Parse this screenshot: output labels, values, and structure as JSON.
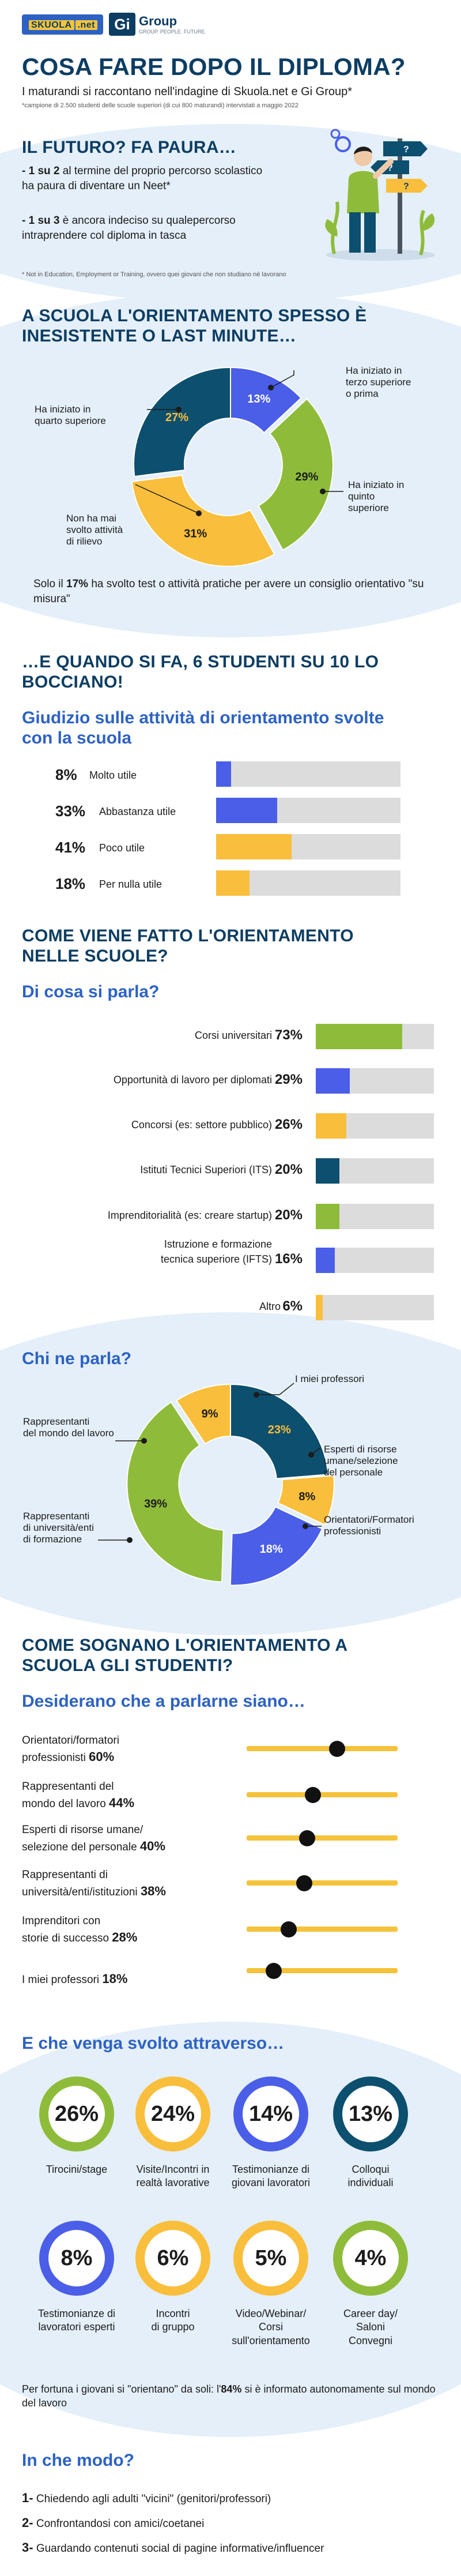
{
  "logos": {
    "skuola_main": "SKUOLA",
    "skuola_tag": ".net",
    "gi_mark": "Gi",
    "gi_text": "Group",
    "gi_tagline": "GROUP. PEOPLE. FUTURE."
  },
  "header": {
    "title": "COSA FARE DOPO IL DIPLOMA?",
    "subtitle": "I maturandi si raccontano nell'indagine di Skuola.net e Gi Group*",
    "sample_note": "*campione di 2.500 studenti delle scuole superiori (di cui 800 maturandi) intervistati a maggio 2022"
  },
  "future": {
    "title": "IL FUTURO? FA PAURA…",
    "point1_a": "- ",
    "point1_b": "1 su 2",
    "point1_c": " al termine del proprio percorso scolastico ha paura di diventare un Neet*",
    "point2_a": "- ",
    "point2_b": "1 su 3",
    "point2_c": " è ancora indeciso su qualepercorso intraprendere col diploma in tasca",
    "neet_note": "* Not in Education, Employment or Training, ovvero quei giovani che non studiano né lavorano",
    "sign_labels": [
      "?",
      "?",
      "?"
    ]
  },
  "start_section": {
    "title_line1": "A SCUOLA L'ORIENTAMENTO SPESSO È",
    "title_line2": "INESISTENTE O LAST MINUTE…",
    "footnote_a": "Solo il ",
    "footnote_b": "17%",
    "footnote_c": " ha svolto test o attività pratiche per avere un consiglio orientativo \"su misura\""
  },
  "chart_data": [
    {
      "type": "pie",
      "id": "inizio_orientamento",
      "categories": [
        "Ha iniziato in terzo superiore o prima",
        "Ha iniziato in quinto superiore",
        "Non ha mai svolto attività di rilievo",
        "Ha iniziato in quarto superiore"
      ],
      "values": [
        13,
        29,
        31,
        27
      ],
      "labels": [
        "13%",
        "29%",
        "31%",
        "27%"
      ],
      "colors": [
        "#4a5ee8",
        "#8ebc3a",
        "#f9be3b",
        "#0d4f6e"
      ]
    },
    {
      "type": "bar",
      "id": "giudizio_attivita",
      "title": "Giudizio sulle attività di orientamento svolte con la scuola",
      "categories": [
        "Molto utile",
        "Abbastanza utile",
        "Poco utile",
        "Per nulla utile"
      ],
      "values": [
        8,
        33,
        41,
        18
      ],
      "colors": [
        "#4a5ee8",
        "#4a5ee8",
        "#f9be3b",
        "#f9be3b"
      ],
      "xlim": [
        0,
        100
      ]
    },
    {
      "type": "bar",
      "id": "di_cosa_si_parla",
      "title": "Di cosa si parla?",
      "categories": [
        "Corsi universitari",
        "Opportunità di lavoro per diplomati",
        "Concorsi (es: settore pubblico)",
        "Istituti Tecnici Superiori (ITS)",
        "Imprenditorialità (es: creare startup)",
        "Istruzione e formazione tecnica superiore (IFTS)",
        "Altro"
      ],
      "values": [
        73,
        29,
        26,
        20,
        20,
        16,
        6
      ],
      "colors": [
        "#8ebc3a",
        "#4a5ee8",
        "#f9be3b",
        "#0d4f6e",
        "#8ebc3a",
        "#4a5ee8",
        "#f9be3b"
      ],
      "xlim": [
        0,
        100
      ]
    },
    {
      "type": "pie",
      "id": "chi_ne_parla",
      "title": "Chi ne parla?",
      "categories": [
        "I miei professori",
        "Esperti di risorse umane/selezione del personale",
        "Orientatori/Formatori professionisti",
        "Rappresentanti di università/enti di formazione",
        "Rappresentanti del mondo del lavoro"
      ],
      "values": [
        23,
        8,
        18,
        39,
        9
      ],
      "labels": [
        "23%",
        "8%",
        "18%",
        "39%",
        "9%"
      ],
      "colors": [
        "#0d4f6e",
        "#f9be3b",
        "#4a5ee8",
        "#8ebc3a",
        "#f9be3b"
      ]
    },
    {
      "type": "bar",
      "id": "desiderano_parlarne",
      "title": "Desiderano che a parlarne siano…",
      "categories": [
        "Orientatori/formatori professionisti",
        "Rappresentanti del mondo del lavoro",
        "Esperti di risorse umane/ selezione del personale",
        "Rappresentanti di università/enti/istituzioni",
        "Imprenditori con storie di successo",
        "I miei professori"
      ],
      "values": [
        60,
        44,
        40,
        38,
        28,
        18
      ],
      "xlim": [
        0,
        100
      ]
    },
    {
      "type": "bar",
      "id": "svolto_attraverso",
      "title": "E che venga svolto attraverso…",
      "categories": [
        "Tirocini/stage",
        "Visite/Incontri in realtà lavorative",
        "Testimonianze di giovani lavoratori",
        "Colloqui individuali",
        "Testimonianze di lavoratori esperti",
        "Incontri di gruppo",
        "Video/Webinar/ Corsi sull'orientamento",
        "Career day/ Saloni Convegni"
      ],
      "values": [
        26,
        24,
        14,
        13,
        8,
        6,
        5,
        4
      ],
      "colors": [
        "#8ebc3a",
        "#f9be3b",
        "#4a5ee8",
        "#0d4f6e",
        "#4a5ee8",
        "#f9be3b",
        "#f9be3b",
        "#8ebc3a"
      ]
    }
  ],
  "pie1_labels": {
    "terzo": "Ha iniziato in\nterzo superiore\no prima",
    "quinto": "Ha iniziato in\nquinto\nsuperiore",
    "mai": "Non ha mai\nsvolto attività\ndi rilievo",
    "quarto": "Ha iniziato in\nquarto superiore"
  },
  "bocciano": {
    "title_line1": "…E QUANDO SI FA, 6 STUDENTI SU 10 LO",
    "title_line2": "BOCCIANO!",
    "sub_line1": "Giudizio sulle attività di orientamento svolte",
    "sub_line2": "con la scuola",
    "rows": [
      {
        "pct": "8%",
        "label": "Molto utile"
      },
      {
        "pct": "33%",
        "label": "Abbastanza utile"
      },
      {
        "pct": "41%",
        "label": "Poco utile"
      },
      {
        "pct": "18%",
        "label": "Per nulla utile"
      }
    ]
  },
  "come_fatto": {
    "title_line1": "COME VIENE FATTO L'ORIENTAMENTO",
    "title_line2": "NELLE SCUOLE?",
    "sub": "Di cosa si parla?",
    "rows": [
      {
        "label": "Corsi universitari",
        "pct": "73%"
      },
      {
        "label": "Opportunità di lavoro per diplomati",
        "pct": "29%"
      },
      {
        "label": "Concorsi (es: settore pubblico)",
        "pct": "26%"
      },
      {
        "label": "Istituti Tecnici Superiori (ITS)",
        "pct": "20%"
      },
      {
        "label": "Imprenditorialità (es: creare startup)",
        "pct": "20%"
      },
      {
        "label_line1": "Istruzione e formazione",
        "label_line2": "tecnica superiore (IFTS)",
        "pct": "16%"
      },
      {
        "label": "Altro",
        "pct": "6%"
      }
    ]
  },
  "chi": {
    "sub": "Chi ne parla?",
    "professori": "I miei professori",
    "esperti": "Esperti di risorse\numane/selezione\ndel personale",
    "orientatori": "Orientatori/Formatori\nprofessionisti",
    "universita": "Rappresentanti\ndi università/enti\ndi formazione",
    "mondo": "Rappresentanti\ndel mondo del lavoro"
  },
  "sognano": {
    "title_line1": "COME SOGNANO L'ORIENTAMENTO A",
    "title_line2": "SCUOLA GLI STUDENTI?",
    "sub": "Desiderano che a parlarne siano…",
    "rows": [
      {
        "l1": "Orientatori/formatori",
        "l2": "professionisti ",
        "pct": "60%"
      },
      {
        "l1": "Rappresentanti del",
        "l2": "mondo del lavoro ",
        "pct": "44%"
      },
      {
        "l1": "Esperti di risorse umane/",
        "l2": "selezione del personale ",
        "pct": "40%"
      },
      {
        "l1": "Rappresentanti di",
        "l2": "università/enti/istituzioni ",
        "pct": "38%"
      },
      {
        "l1": "Imprenditori con",
        "l2": "storie di successo ",
        "pct": "28%"
      },
      {
        "l1": "",
        "l2": "I miei professori ",
        "pct": "18%"
      }
    ]
  },
  "attraverso": {
    "sub": "E che venga svolto attraverso…",
    "items": [
      {
        "pct": "26%",
        "label": "Tirocini/stage"
      },
      {
        "pct": "24%",
        "label": "Visite/Incontri in\nrealtà lavorative"
      },
      {
        "pct": "14%",
        "label": "Testimonianze di\ngiovani lavoratori"
      },
      {
        "pct": "13%",
        "label": "Colloqui\nindividuali"
      },
      {
        "pct": "8%",
        "label": "Testimonianze di\nlavoratori esperti"
      },
      {
        "pct": "6%",
        "label": "Incontri\ndi gruppo"
      },
      {
        "pct": "5%",
        "label": "Video/Webinar/\nCorsi\nsull'orientamento"
      },
      {
        "pct": "4%",
        "label": "Career day/\nSaloni\nConvegni"
      }
    ],
    "note_a": "Per fortuna i giovani si \"orientano\" da soli: l'",
    "note_b": "84%",
    "note_c": " si è informato autonomamente sul mondo del lavoro"
  },
  "come": {
    "sub": "In che modo?",
    "items": [
      {
        "n": "1-",
        "text": " Chiedendo agli adulti \"vicini\" (genitori/professori)"
      },
      {
        "n": "2-",
        "text": " Confrontandosi con amici/coetanei"
      },
      {
        "n": "3-",
        "text": " Guardando contenuti social di pagine informative/influencer"
      }
    ]
  }
}
